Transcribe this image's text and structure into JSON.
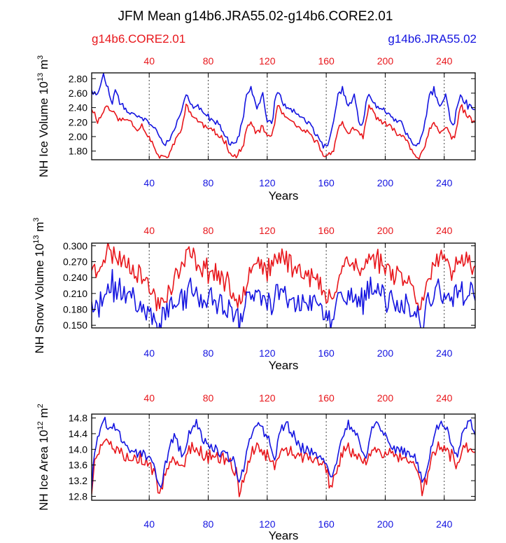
{
  "title": "JFM Mean g14b6.JRA55.02-g14b6.CORE2.01",
  "legend": {
    "left": "g14b6.CORE2.01",
    "right": "g14b6.JRA55.02"
  },
  "colors": {
    "core": "#e8161b",
    "jra": "#1414e0",
    "axis": "#000000",
    "grid": "#444444"
  },
  "chart_data": [
    {
      "type": "line",
      "title": "NH Ice Volume",
      "xlabel": "Years",
      "ylabel": "NH Ice Volume 10",
      "ylabel_exp": "13",
      "ylabel_unit": "m",
      "ylabel_unit_exp": "3",
      "xlim": [
        1,
        261
      ],
      "ylim": [
        1.68,
        2.88
      ],
      "x_ticks": [
        40,
        80,
        120,
        160,
        200,
        240
      ],
      "x_tick_labels": [
        "40",
        "80",
        "120",
        "160",
        "200",
        "240"
      ],
      "top_tick_labels": [
        "40",
        "80",
        "120",
        "160",
        "200",
        "240"
      ],
      "y_ticks": [
        1.8,
        2.0,
        2.2,
        2.4,
        2.6,
        2.8
      ],
      "y_tick_labels": [
        "1.80",
        "2.00",
        "2.20",
        "2.40",
        "2.60",
        "2.80"
      ],
      "cycle_length": 62,
      "series": [
        {
          "name": "g14b6.CORE2.01",
          "color": "#e8161b",
          "seed": 11,
          "noise": 0.035,
          "cycle_keys": [
            [
              0,
              2.2
            ],
            [
              2,
              2.42
            ],
            [
              6,
              2.3
            ],
            [
              12,
              2.18
            ],
            [
              18,
              2.1
            ],
            [
              24,
              2.02
            ],
            [
              28,
              1.95
            ],
            [
              32,
              1.78
            ],
            [
              36,
              1.72
            ],
            [
              40,
              1.84
            ],
            [
              43,
              2.1
            ],
            [
              46,
              2.18
            ],
            [
              50,
              2.05
            ],
            [
              54,
              2.12
            ],
            [
              57,
              2.02
            ],
            [
              60,
              2.0
            ],
            [
              62,
              2.2
            ]
          ],
          "first_cycle_keys": [
            [
              0,
              2.4
            ],
            [
              4,
              2.22
            ],
            [
              7,
              2.3
            ],
            [
              10,
              2.44
            ],
            [
              14,
              2.34
            ],
            [
              20,
              2.22
            ],
            [
              26,
              2.24
            ],
            [
              30,
              2.1
            ],
            [
              34,
              2.16
            ],
            [
              38,
              2.02
            ],
            [
              41,
              1.92
            ],
            [
              44,
              1.76
            ],
            [
              48,
              1.7
            ],
            [
              52,
              1.74
            ],
            [
              56,
              1.9
            ],
            [
              58,
              2.0
            ],
            [
              62,
              2.2
            ]
          ]
        },
        {
          "name": "g14b6.JRA55.02",
          "color": "#1414e0",
          "seed": 47,
          "noise": 0.04,
          "cycle_keys": [
            [
              0,
              2.45
            ],
            [
              2,
              2.6
            ],
            [
              6,
              2.45
            ],
            [
              12,
              2.36
            ],
            [
              18,
              2.26
            ],
            [
              24,
              2.18
            ],
            [
              28,
              2.04
            ],
            [
              32,
              1.88
            ],
            [
              36,
              1.9
            ],
            [
              40,
              2.2
            ],
            [
              43,
              2.58
            ],
            [
              46,
              2.66
            ],
            [
              50,
              2.4
            ],
            [
              54,
              2.58
            ],
            [
              57,
              2.2
            ],
            [
              60,
              2.18
            ],
            [
              62,
              2.45
            ]
          ],
          "first_cycle_keys": [
            [
              0,
              2.66
            ],
            [
              3,
              2.56
            ],
            [
              6,
              2.7
            ],
            [
              8,
              2.86
            ],
            [
              10,
              2.72
            ],
            [
              14,
              2.46
            ],
            [
              16,
              2.62
            ],
            [
              20,
              2.42
            ],
            [
              26,
              2.34
            ],
            [
              32,
              2.28
            ],
            [
              36,
              2.22
            ],
            [
              40,
              2.16
            ],
            [
              44,
              2.08
            ],
            [
              48,
              1.9
            ],
            [
              52,
              1.94
            ],
            [
              56,
              2.1
            ],
            [
              62,
              2.45
            ]
          ]
        }
      ]
    },
    {
      "type": "line",
      "title": "NH Snow Volume",
      "xlabel": "Years",
      "ylabel": "NH Snow Volume 10",
      "ylabel_exp": "13",
      "ylabel_unit": "m",
      "ylabel_unit_exp": "3",
      "xlim": [
        1,
        261
      ],
      "ylim": [
        0.145,
        0.305
      ],
      "x_ticks": [
        40,
        80,
        120,
        160,
        200,
        240
      ],
      "x_tick_labels": [
        "40",
        "80",
        "120",
        "160",
        "200",
        "240"
      ],
      "top_tick_labels": [
        "40",
        "80",
        "120",
        "160",
        "200",
        "240"
      ],
      "y_ticks": [
        0.15,
        0.18,
        0.21,
        0.24,
        0.27,
        0.3
      ],
      "y_tick_labels": [
        "0.150",
        "0.180",
        "0.210",
        "0.240",
        "0.270",
        "0.300"
      ],
      "cycle_length": 62,
      "series": [
        {
          "name": "g14b6.CORE2.01",
          "color": "#e8161b",
          "seed": 23,
          "noise": 0.018,
          "cycle_keys": [
            [
              0,
              0.265
            ],
            [
              4,
              0.285
            ],
            [
              10,
              0.268
            ],
            [
              16,
              0.255
            ],
            [
              22,
              0.25
            ],
            [
              28,
              0.235
            ],
            [
              32,
              0.215
            ],
            [
              36,
              0.195
            ],
            [
              40,
              0.215
            ],
            [
              44,
              0.245
            ],
            [
              48,
              0.275
            ],
            [
              52,
              0.27
            ],
            [
              56,
              0.255
            ],
            [
              60,
              0.25
            ],
            [
              62,
              0.265
            ]
          ],
          "first_cycle_keys": [
            [
              0,
              0.265
            ],
            [
              3,
              0.245
            ],
            [
              6,
              0.27
            ],
            [
              10,
              0.29
            ],
            [
              14,
              0.285
            ],
            [
              20,
              0.275
            ],
            [
              26,
              0.265
            ],
            [
              30,
              0.255
            ],
            [
              34,
              0.245
            ],
            [
              38,
              0.225
            ],
            [
              42,
              0.205
            ],
            [
              46,
              0.19
            ],
            [
              50,
              0.205
            ],
            [
              56,
              0.235
            ],
            [
              62,
              0.265
            ]
          ]
        },
        {
          "name": "g14b6.JRA55.02",
          "color": "#1414e0",
          "seed": 71,
          "noise": 0.022,
          "cycle_keys": [
            [
              0,
              0.205
            ],
            [
              6,
              0.215
            ],
            [
              12,
              0.2
            ],
            [
              18,
              0.195
            ],
            [
              24,
              0.19
            ],
            [
              30,
              0.18
            ],
            [
              34,
              0.168
            ],
            [
              38,
              0.16
            ],
            [
              42,
              0.185
            ],
            [
              46,
              0.215
            ],
            [
              50,
              0.205
            ],
            [
              54,
              0.2
            ],
            [
              58,
              0.19
            ],
            [
              62,
              0.205
            ]
          ],
          "first_cycle_keys": [
            [
              0,
              0.2
            ],
            [
              2,
              0.165
            ],
            [
              5,
              0.19
            ],
            [
              10,
              0.205
            ],
            [
              14,
              0.225
            ],
            [
              20,
              0.215
            ],
            [
              26,
              0.205
            ],
            [
              30,
              0.195
            ],
            [
              34,
              0.185
            ],
            [
              38,
              0.175
            ],
            [
              42,
              0.165
            ],
            [
              46,
              0.16
            ],
            [
              52,
              0.18
            ],
            [
              58,
              0.19
            ],
            [
              62,
              0.205
            ]
          ]
        }
      ]
    },
    {
      "type": "line",
      "title": "NH Ice Area",
      "xlabel": "Years",
      "ylabel": "NH Ice Area 10",
      "ylabel_exp": "12",
      "ylabel_unit": "m",
      "ylabel_unit_exp": "2",
      "xlim": [
        1,
        261
      ],
      "ylim": [
        12.7,
        14.9
      ],
      "x_ticks": [
        40,
        80,
        120,
        160,
        200,
        240
      ],
      "x_tick_labels": [
        "40",
        "80",
        "120",
        "160",
        "200",
        "240"
      ],
      "top_tick_labels": [
        "40",
        "80",
        "120",
        "160",
        "200",
        "240"
      ],
      "y_ticks": [
        12.8,
        13.2,
        13.6,
        14.0,
        14.4,
        14.8
      ],
      "y_tick_labels": [
        "12.8",
        "13.2",
        "13.6",
        "14.0",
        "14.4",
        "14.8"
      ],
      "cycle_length": 62,
      "series": [
        {
          "name": "g14b6.CORE2.01",
          "color": "#e8161b",
          "seed": 5,
          "noise": 0.14,
          "cycle_keys": [
            [
              0,
              13.6
            ],
            [
              4,
              14.05
            ],
            [
              10,
              13.95
            ],
            [
              16,
              13.85
            ],
            [
              22,
              13.8
            ],
            [
              28,
              13.75
            ],
            [
              32,
              13.65
            ],
            [
              36,
              13.35
            ],
            [
              38,
              12.9
            ],
            [
              41,
              13.25
            ],
            [
              45,
              13.8
            ],
            [
              50,
              14.05
            ],
            [
              54,
              13.9
            ],
            [
              58,
              13.8
            ],
            [
              62,
              13.6
            ]
          ],
          "first_cycle_keys": [
            [
              0,
              12.9
            ],
            [
              2,
              13.7
            ],
            [
              5,
              14.05
            ],
            [
              8,
              14.2
            ],
            [
              12,
              14.1
            ],
            [
              18,
              13.95
            ],
            [
              24,
              13.85
            ],
            [
              30,
              13.8
            ],
            [
              36,
              13.7
            ],
            [
              40,
              13.55
            ],
            [
              44,
              13.25
            ],
            [
              46,
              12.8
            ],
            [
              49,
              13.3
            ],
            [
              54,
              13.8
            ],
            [
              62,
              13.6
            ]
          ]
        },
        {
          "name": "g14b6.JRA55.02",
          "color": "#1414e0",
          "seed": 89,
          "noise": 0.12,
          "cycle_keys": [
            [
              0,
              13.75
            ],
            [
              4,
              14.45
            ],
            [
              8,
              14.7
            ],
            [
              12,
              14.4
            ],
            [
              18,
              14.05
            ],
            [
              24,
              13.95
            ],
            [
              30,
              13.85
            ],
            [
              34,
              13.75
            ],
            [
              38,
              13.2
            ],
            [
              41,
              13.5
            ],
            [
              45,
              14.2
            ],
            [
              50,
              14.7
            ],
            [
              54,
              14.5
            ],
            [
              58,
              14.2
            ],
            [
              62,
              13.75
            ]
          ],
          "first_cycle_keys": [
            [
              0,
              13.05
            ],
            [
              2,
              13.9
            ],
            [
              5,
              14.4
            ],
            [
              8,
              14.75
            ],
            [
              12,
              14.55
            ],
            [
              16,
              14.6
            ],
            [
              20,
              14.25
            ],
            [
              26,
              14.0
            ],
            [
              32,
              13.9
            ],
            [
              38,
              13.85
            ],
            [
              42,
              13.6
            ],
            [
              46,
              13.0
            ],
            [
              50,
              13.55
            ],
            [
              56,
              14.45
            ],
            [
              62,
              13.75
            ]
          ]
        }
      ]
    }
  ]
}
